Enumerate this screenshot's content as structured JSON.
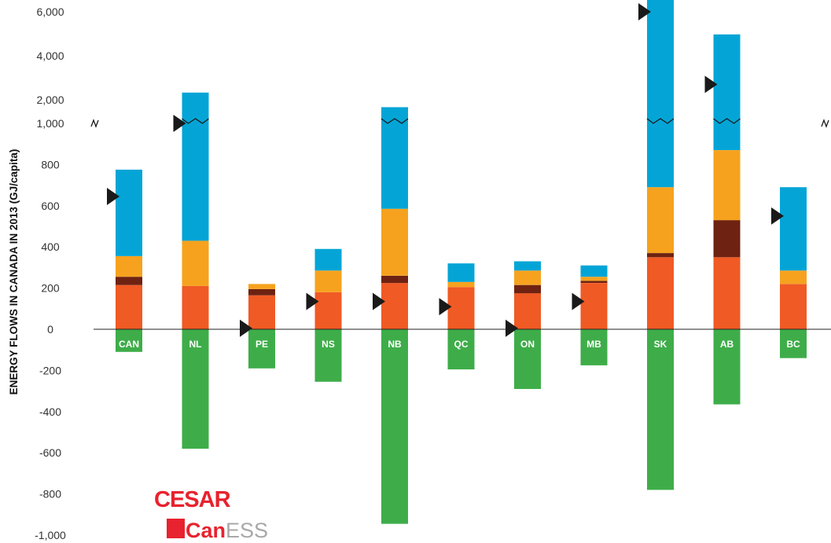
{
  "chart_data": {
    "type": "bar",
    "stacked": true,
    "ylabel": "ENERGY FLOWS IN CANADA IN 2013 (GJ/capita)",
    "y_ticks": [
      "6,000",
      "4,000",
      "2,000",
      "1,000",
      "800",
      "600",
      "400",
      "200",
      "0",
      "-200",
      "-400",
      "-600",
      "-800",
      "-1,000"
    ],
    "y_scale": "broken axis: linear 0 to 1,000, then compressed 1,000 to 6,000 above the break",
    "categories": [
      "CAN",
      "NL",
      "PE",
      "NS",
      "NB",
      "QC",
      "ON",
      "MB",
      "SK",
      "AB",
      "BC"
    ],
    "series": [
      {
        "color": "#f05a24",
        "values": [
          215,
          210,
          165,
          180,
          225,
          205,
          175,
          225,
          350,
          350,
          220
        ]
      },
      {
        "color": "#6e2212",
        "values": [
          40,
          0,
          30,
          0,
          35,
          0,
          40,
          10,
          20,
          180,
          0
        ]
      },
      {
        "color": "#f6a21e",
        "values": [
          100,
          220,
          25,
          105,
          325,
          25,
          70,
          20,
          320,
          340,
          65
        ]
      },
      {
        "color": "#04a5d6",
        "values": [
          420,
          1900,
          0,
          105,
          1100,
          90,
          45,
          55,
          6600,
          4100,
          405
        ]
      },
      {
        "color": "#3ead49",
        "values": [
          -110,
          -580,
          -190,
          -255,
          -945,
          -195,
          -290,
          -175,
          -780,
          -365,
          -140
        ]
      }
    ],
    "markers": [
      645,
      1000,
      5,
      135,
      135,
      110,
      5,
      135,
      6000,
      2700,
      550
    ],
    "marker_color": "#1a1a1a",
    "break_indicator_color": "#1a1a1a",
    "grid": false
  },
  "logos": {
    "top": "CESAR",
    "bottom_red": "Can",
    "bottom_gray": "ESS"
  }
}
